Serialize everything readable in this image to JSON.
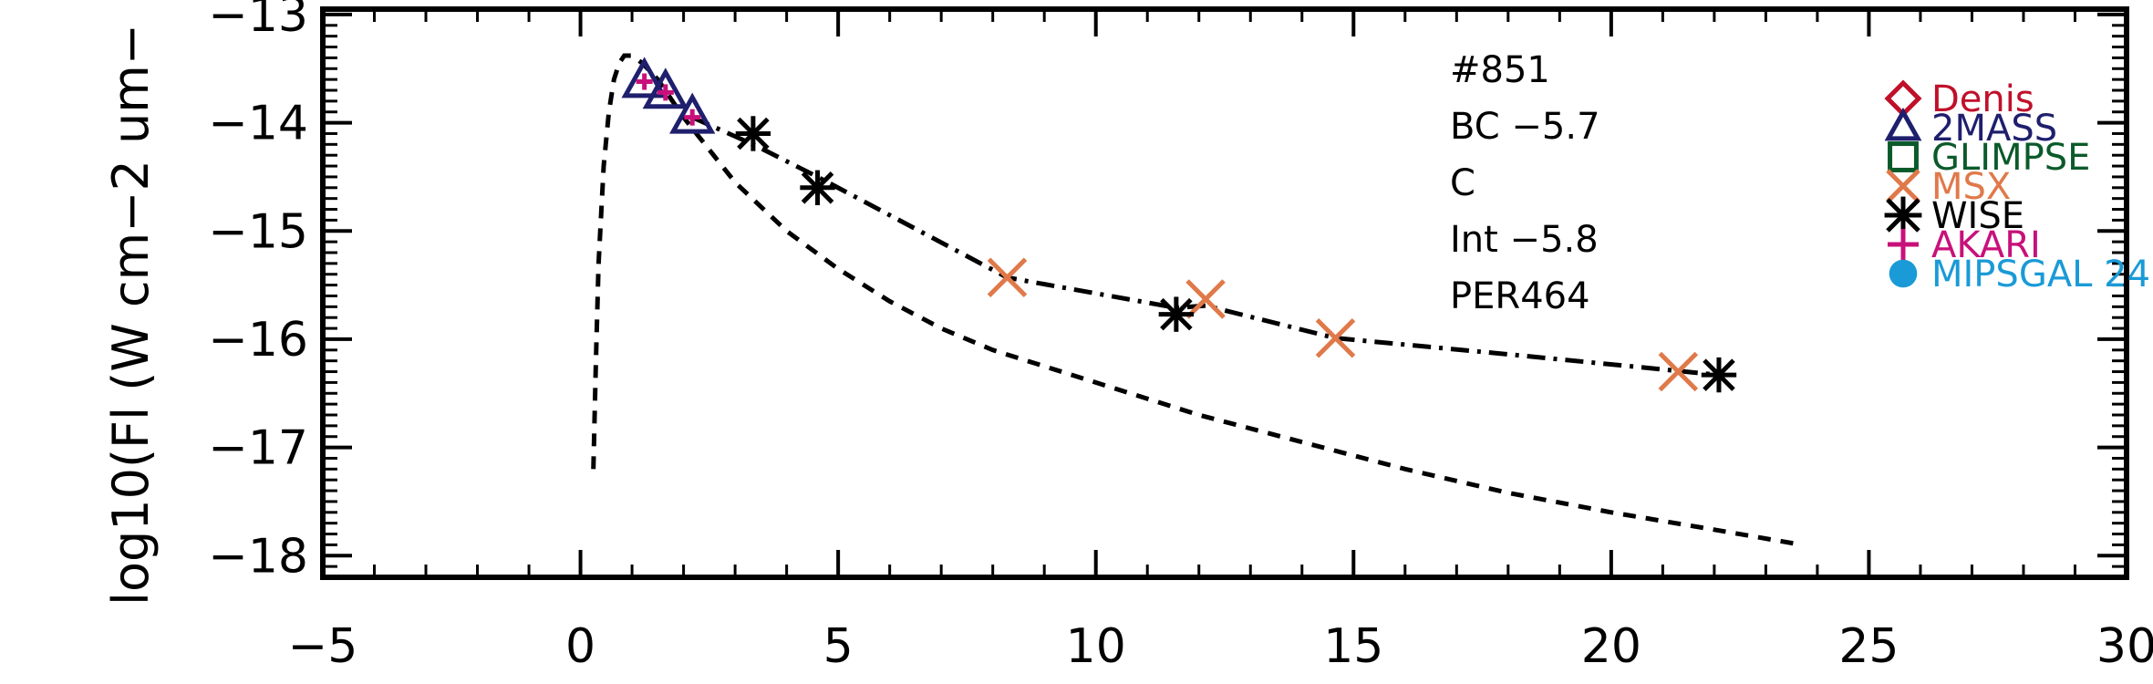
{
  "chart_data": {
    "type": "scatter",
    "title": "",
    "xlabel": "",
    "ylabel": "log10(Fl (W cm−2 um−",
    "xlim": [
      -5,
      30
    ],
    "ylim": [
      -18.2,
      -12.95
    ],
    "x_ticks": [
      -5,
      0,
      5,
      10,
      15,
      20,
      25,
      30
    ],
    "x_tick_labels": [
      "−5",
      "0",
      "5",
      "10",
      "15",
      "20",
      "25",
      "30"
    ],
    "y_ticks": [
      -18,
      -17,
      -16,
      -15,
      -14,
      -13
    ],
    "y_tick_labels": [
      "−18",
      "−17",
      "−16",
      "−15",
      "−14",
      "−13"
    ],
    "annotations": [
      "#851",
      "BC −5.7",
      "C",
      "Int −5.8",
      "PER464"
    ],
    "legend_position": "top-right",
    "legend": [
      {
        "label": "Denis",
        "marker": "diamond",
        "color": "#c0102a"
      },
      {
        "label": "2MASS",
        "marker": "triangle",
        "color": "#1f1f6e"
      },
      {
        "label": "GLIMPSE",
        "marker": "square",
        "color": "#0b5a2a"
      },
      {
        "label": "MSX",
        "marker": "x",
        "color": "#e0794a"
      },
      {
        "label": "WISE",
        "marker": "asterisk",
        "color": "#000000"
      },
      {
        "label": "AKARI",
        "marker": "plus",
        "color": "#c8107a"
      },
      {
        "label": "MIPSGAL 24",
        "marker": "circle",
        "color": "#1a9ad6"
      }
    ],
    "series": [
      {
        "marker": "triangle",
        "color": "#1f1f6e",
        "x": [
          1.24,
          1.65,
          2.17
        ],
        "y": [
          -13.62,
          -13.72,
          -13.95
        ]
      },
      {
        "marker": "x",
        "color": "#e0794a",
        "x": [
          8.28,
          12.13,
          14.65,
          21.3
        ],
        "y": [
          -15.43,
          -15.63,
          -15.99,
          -16.3
        ]
      },
      {
        "marker": "asterisk",
        "color": "#000000",
        "x": [
          3.35,
          4.6,
          11.56,
          22.09
        ],
        "y": [
          -14.1,
          -14.6,
          -15.77,
          -16.33
        ]
      },
      {
        "marker": "plus",
        "color": "#c8107a",
        "x": [
          1.24,
          1.65,
          2.17
        ],
        "y": [
          -13.62,
          -13.72,
          -13.95
        ]
      }
    ],
    "lines": [
      {
        "style": "dash-dot",
        "x": [
          2.17,
          3.35,
          4.6,
          8.28,
          11.56,
          12.13,
          14.65,
          18.0,
          22.09
        ],
        "y": [
          -13.95,
          -14.2,
          -14.5,
          -15.43,
          -15.71,
          -15.69,
          -15.99,
          -16.14,
          -16.33
        ]
      },
      {
        "style": "dashed",
        "x": [
          0.25,
          0.3,
          0.35,
          0.45,
          0.55,
          0.65,
          0.75,
          0.85,
          1.0,
          1.2,
          1.5,
          2.0,
          2.5,
          3.0,
          4.0,
          5.0,
          6.0,
          7.0,
          8.0,
          10.0,
          12.0,
          14.0,
          16.0,
          18.0,
          20.0,
          22.0,
          23.7
        ],
        "y": [
          -17.2,
          -16.2,
          -15.3,
          -14.4,
          -13.9,
          -13.6,
          -13.45,
          -13.38,
          -13.38,
          -13.45,
          -13.6,
          -13.95,
          -14.25,
          -14.55,
          -15.0,
          -15.35,
          -15.65,
          -15.9,
          -16.1,
          -16.4,
          -16.7,
          -16.95,
          -17.2,
          -17.42,
          -17.6,
          -17.76,
          -17.9
        ]
      }
    ]
  }
}
